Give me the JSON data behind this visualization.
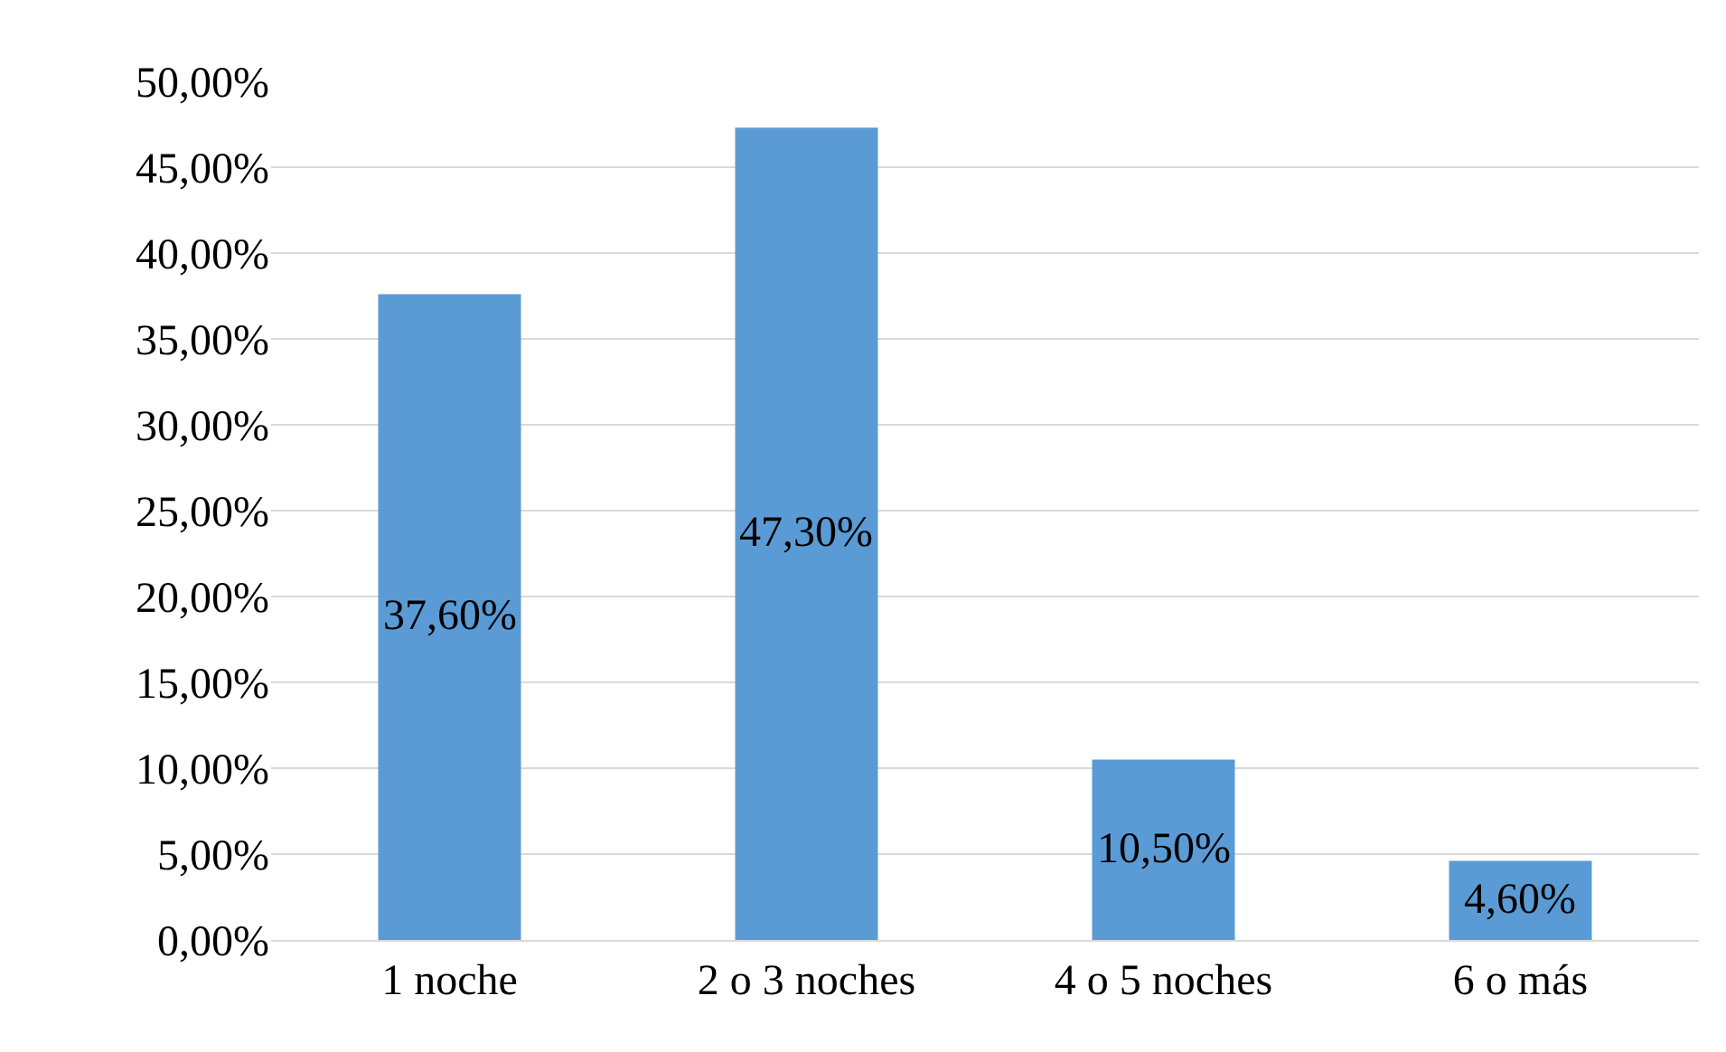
{
  "chart_data": {
    "type": "bar",
    "categories": [
      "1 noche",
      "2 o 3 noches",
      "4 o 5 noches",
      "6 o más"
    ],
    "values": [
      37.6,
      47.3,
      10.5,
      4.6
    ],
    "color": "#5b9bd5",
    "value_labels": [
      "37,60%",
      "47,30%",
      "10,50%",
      "4,60%"
    ],
    "ylim": [
      0,
      50
    ],
    "yticks": [
      {
        "value": 0,
        "label": "0,00%"
      },
      {
        "value": 5,
        "label": "5,00%"
      },
      {
        "value": 10,
        "label": "10,00%"
      },
      {
        "value": 15,
        "label": "15,00%"
      },
      {
        "value": 20,
        "label": "20,00%"
      },
      {
        "value": 25,
        "label": "25,00%"
      },
      {
        "value": 30,
        "label": "30,00%"
      },
      {
        "value": 35,
        "label": "35,00%"
      },
      {
        "value": 40,
        "label": "40,00%"
      },
      {
        "value": 45,
        "label": "45,00%"
      },
      {
        "value": 50,
        "label": "50,00%"
      }
    ],
    "grid": "y"
  }
}
